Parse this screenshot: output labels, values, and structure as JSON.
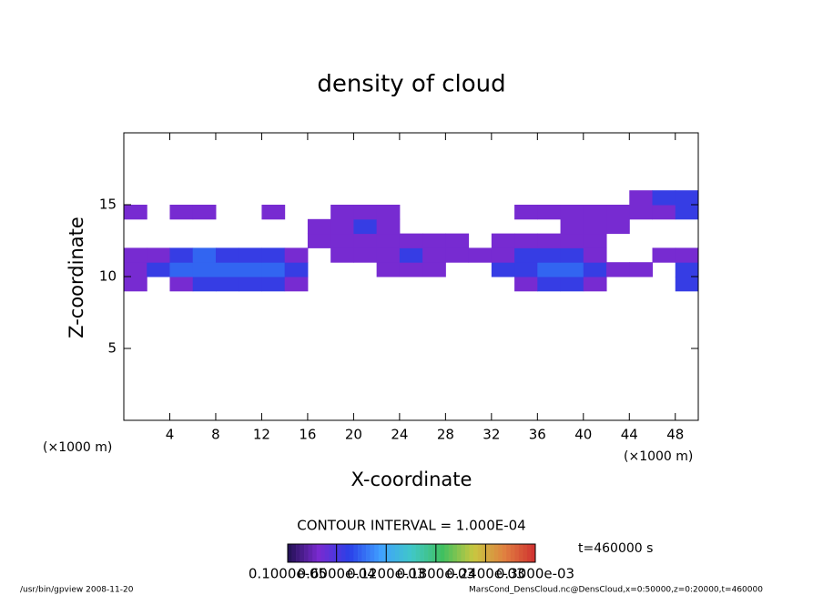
{
  "chart_data": {
    "type": "heatmap",
    "title": "density of cloud",
    "xlabel": "X-coordinate",
    "ylabel": "Z-coordinate",
    "x_unit": "(×1000 m)",
    "y_unit": "(×1000 m)",
    "xlim": [
      0,
      50
    ],
    "ylim": [
      0,
      20
    ],
    "xticks": [
      4,
      8,
      12,
      16,
      20,
      24,
      28,
      32,
      36,
      40,
      44,
      48
    ],
    "yticks": [
      5,
      10,
      15
    ],
    "xbins": [
      0,
      2,
      4,
      6,
      8,
      10,
      12,
      14,
      16,
      18,
      20,
      22,
      24,
      26,
      28,
      30,
      32,
      34,
      36,
      38,
      40,
      42,
      44,
      46,
      48,
      50
    ],
    "zbins": [
      9,
      10,
      11,
      12,
      13,
      14,
      15,
      16
    ],
    "values": [
      [
        4e-05,
        null,
        4e-05,
        7e-05,
        7e-05,
        7e-05,
        7e-05,
        4e-05,
        null,
        null,
        null,
        null,
        null,
        null,
        null,
        null,
        null,
        4e-05,
        7e-05,
        7e-05,
        4e-05,
        null,
        null,
        null,
        7e-05
      ],
      [
        4e-05,
        7e-05,
        9e-05,
        9e-05,
        9e-05,
        9e-05,
        9e-05,
        7e-05,
        null,
        null,
        null,
        4e-05,
        4e-05,
        4e-05,
        null,
        null,
        7e-05,
        7e-05,
        9e-05,
        9e-05,
        7e-05,
        4e-05,
        4e-05,
        null,
        7e-05
      ],
      [
        4e-05,
        4e-05,
        7e-05,
        9e-05,
        7e-05,
        7e-05,
        7e-05,
        4e-05,
        null,
        4e-05,
        4e-05,
        4e-05,
        7e-05,
        4e-05,
        4e-05,
        4e-05,
        4e-05,
        7e-05,
        7e-05,
        7e-05,
        4e-05,
        null,
        null,
        4e-05,
        4e-05
      ],
      [
        null,
        null,
        null,
        null,
        null,
        null,
        null,
        null,
        4e-05,
        4e-05,
        4e-05,
        4e-05,
        4e-05,
        4e-05,
        4e-05,
        null,
        4e-05,
        4e-05,
        4e-05,
        4e-05,
        4e-05,
        null,
        null,
        null,
        null
      ],
      [
        null,
        null,
        null,
        null,
        null,
        null,
        null,
        null,
        4e-05,
        4e-05,
        7e-05,
        4e-05,
        null,
        null,
        null,
        null,
        null,
        null,
        null,
        4e-05,
        4e-05,
        4e-05,
        null,
        null,
        null
      ],
      [
        4e-05,
        null,
        4e-05,
        4e-05,
        null,
        null,
        4e-05,
        null,
        null,
        4e-05,
        4e-05,
        4e-05,
        null,
        null,
        null,
        null,
        null,
        4e-05,
        4e-05,
        4e-05,
        4e-05,
        4e-05,
        4e-05,
        4e-05,
        7e-05
      ],
      [
        null,
        null,
        null,
        null,
        null,
        null,
        null,
        null,
        null,
        null,
        null,
        null,
        null,
        null,
        null,
        null,
        null,
        null,
        null,
        null,
        null,
        null,
        4e-05,
        7e-05,
        7e-05
      ]
    ],
    "colors": [
      "#201050",
      "#7a2ad0",
      "#2a40e8",
      "#40a0ff",
      "#40c8c8",
      "#40c060",
      "#c8c840",
      "#e08040",
      "#d03030"
    ],
    "clim": [
      1e-06,
      0.0003
    ],
    "colorbar_ticks": [
      {
        "value": 1e-06,
        "label": "0.1000e-05"
      },
      {
        "value": 6e-05,
        "label": "0.6000e-04"
      },
      {
        "value": 0.00012,
        "label": "0.1200e-03"
      },
      {
        "value": 0.00018,
        "label": "0.1800e-03"
      },
      {
        "value": 0.00024,
        "label": "0.2400e-03"
      },
      {
        "value": 0.0003,
        "label": "0.3000e-03"
      }
    ],
    "contour_interval": "CONTOUR INTERVAL = 1.000E-04",
    "time": "t=460000 s",
    "footer_left": "/usr/bin/gpview  2008-11-20",
    "footer_right": "MarsCond_DensCloud.nc@DensCloud,x=0:50000,z=0:20000,t=460000"
  }
}
